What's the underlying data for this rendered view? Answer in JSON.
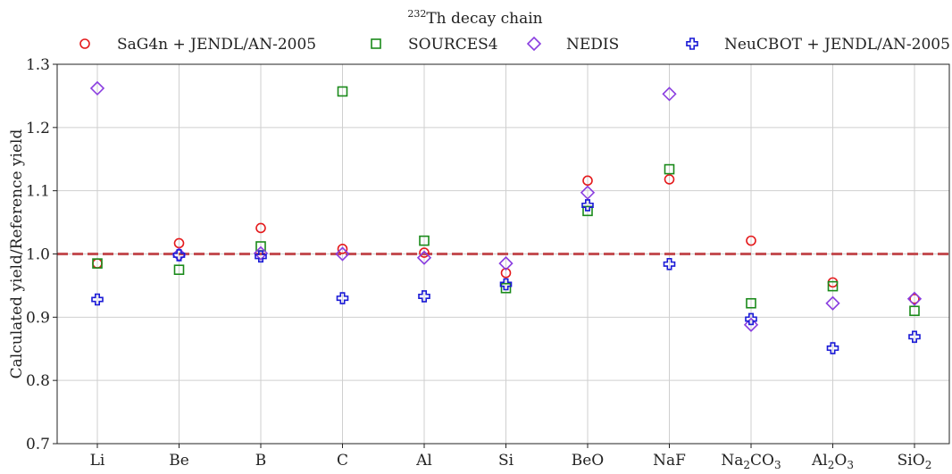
{
  "chart_data": {
    "type": "scatter",
    "legend_title": "Th decay chain",
    "legend_title_superscript": "232",
    "legend_placement": "top",
    "grid": true,
    "xlabel": "",
    "ylabel": "Calculated yield/Reference yield",
    "ylim": [
      0.7,
      1.3
    ],
    "yticks": [
      "0.7",
      "0.8",
      "0.9",
      "1.0",
      "1.1",
      "1.2",
      "1.3"
    ],
    "categories": [
      {
        "label": "Li",
        "parts": [
          {
            "t": "Li",
            "sub": false
          }
        ]
      },
      {
        "label": "Be",
        "parts": [
          {
            "t": "Be",
            "sub": false
          }
        ]
      },
      {
        "label": "B",
        "parts": [
          {
            "t": "B",
            "sub": false
          }
        ]
      },
      {
        "label": "C",
        "parts": [
          {
            "t": "C",
            "sub": false
          }
        ]
      },
      {
        "label": "Al",
        "parts": [
          {
            "t": "Al",
            "sub": false
          }
        ]
      },
      {
        "label": "Si",
        "parts": [
          {
            "t": "Si",
            "sub": false
          }
        ]
      },
      {
        "label": "BeO",
        "parts": [
          {
            "t": "BeO",
            "sub": false
          }
        ]
      },
      {
        "label": "NaF",
        "parts": [
          {
            "t": "NaF",
            "sub": false
          }
        ]
      },
      {
        "label": "Na2CO3",
        "parts": [
          {
            "t": "Na",
            "sub": false
          },
          {
            "t": "2",
            "sub": true
          },
          {
            "t": "CO",
            "sub": false
          },
          {
            "t": "3",
            "sub": true
          }
        ]
      },
      {
        "label": "Al2O3",
        "parts": [
          {
            "t": "Al",
            "sub": false
          },
          {
            "t": "2",
            "sub": true
          },
          {
            "t": "O",
            "sub": false
          },
          {
            "t": "3",
            "sub": true
          }
        ]
      },
      {
        "label": "SiO2",
        "parts": [
          {
            "t": "SiO",
            "sub": false
          },
          {
            "t": "2",
            "sub": true
          }
        ]
      }
    ],
    "reference_line": {
      "y": 1.0,
      "color": "#c44e52",
      "style": "dashed"
    },
    "series": [
      {
        "name": "SaG4n + JENDL/AN-2005",
        "marker": "circle",
        "color": "#e41a1c",
        "values": [
          0.985,
          1.017,
          1.041,
          1.008,
          1.002,
          0.97,
          1.116,
          1.118,
          1.021,
          0.955,
          0.929
        ]
      },
      {
        "name": "SOURCES4",
        "marker": "square",
        "color": "#1a8a1a",
        "values": [
          0.985,
          0.975,
          1.012,
          1.257,
          1.021,
          0.946,
          1.068,
          1.134,
          0.922,
          0.949,
          0.91
        ]
      },
      {
        "name": "NEDIS",
        "marker": "diamond",
        "color": "#8a3ee0",
        "values": [
          1.262,
          0.999,
          1.001,
          1.0,
          0.994,
          0.985,
          1.097,
          1.253,
          0.888,
          0.922,
          0.929
        ]
      },
      {
        "name": "NeuCBOT + JENDL/AN-2005",
        "marker": "plus",
        "color": "#1a1ad6",
        "values": [
          0.928,
          0.998,
          0.996,
          0.93,
          0.933,
          0.952,
          1.077,
          0.984,
          0.897,
          0.851,
          0.869
        ]
      }
    ]
  }
}
